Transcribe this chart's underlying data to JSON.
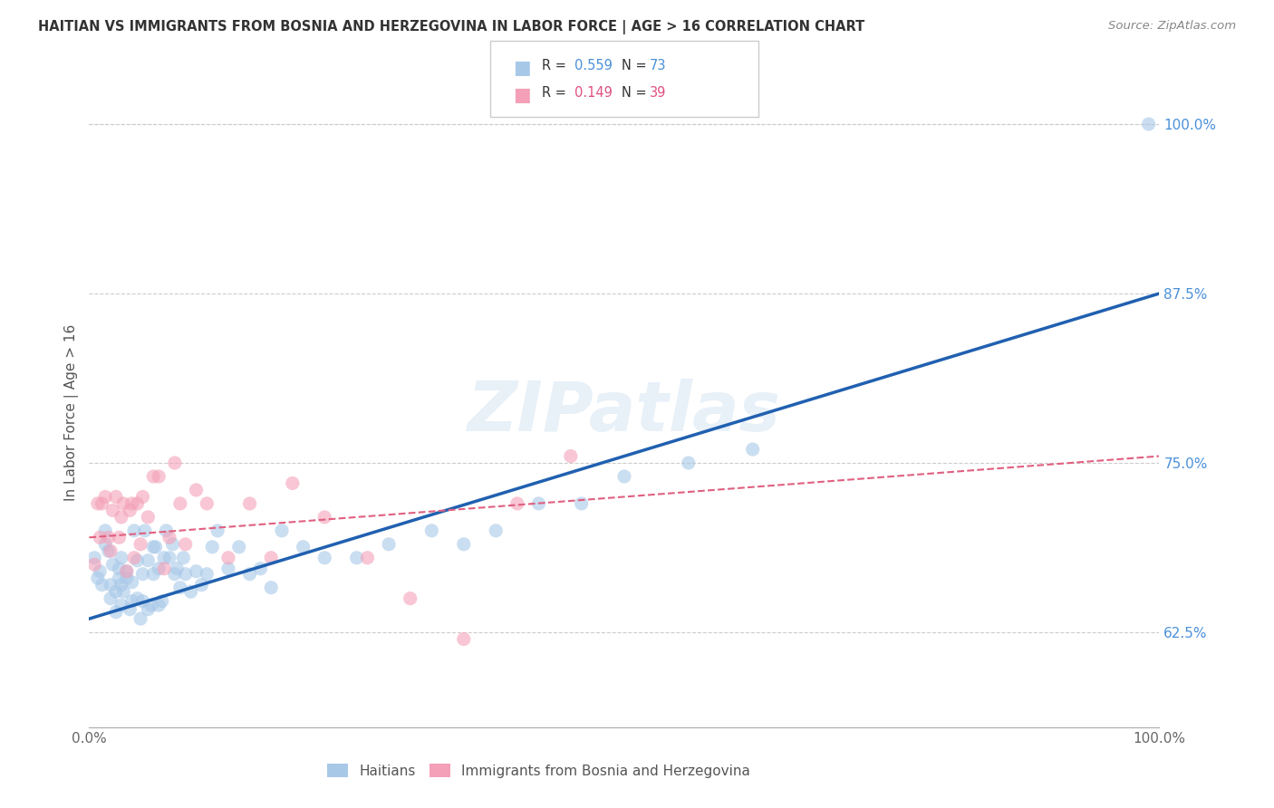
{
  "title": "HAITIAN VS IMMIGRANTS FROM BOSNIA AND HERZEGOVINA IN LABOR FORCE | AGE > 16 CORRELATION CHART",
  "source": "Source: ZipAtlas.com",
  "ylabel": "In Labor Force | Age > 16",
  "xlim": [
    0.0,
    1.0
  ],
  "ylim": [
    0.555,
    1.02
  ],
  "x_ticks": [
    0.0,
    0.1,
    0.2,
    0.3,
    0.4,
    0.5,
    0.6,
    0.7,
    0.8,
    0.9,
    1.0
  ],
  "x_tick_labels": [
    "0.0%",
    "",
    "",
    "",
    "",
    "",
    "",
    "",
    "",
    "",
    "100.0%"
  ],
  "y_ticks_right": [
    0.625,
    0.75,
    0.875,
    1.0
  ],
  "y_tick_labels_right": [
    "62.5%",
    "75.0%",
    "87.5%",
    "100.0%"
  ],
  "color_blue": "#a8c8e8",
  "color_pink": "#f4a0b8",
  "color_blue_text": "#4a90d9",
  "color_pink_text": "#e05080",
  "color_line_blue": "#2060b0",
  "color_line_pink": "#e06080",
  "label_haitians": "Haitians",
  "label_bosnia": "Immigrants from Bosnia and Herzegovina",
  "watermark": "ZIPatlas",
  "blue_scatter_x": [
    0.005,
    0.008,
    0.01,
    0.012,
    0.015,
    0.015,
    0.018,
    0.02,
    0.02,
    0.022,
    0.025,
    0.025,
    0.028,
    0.028,
    0.03,
    0.03,
    0.03,
    0.032,
    0.035,
    0.035,
    0.038,
    0.04,
    0.04,
    0.042,
    0.045,
    0.045,
    0.048,
    0.05,
    0.05,
    0.052,
    0.055,
    0.055,
    0.058,
    0.06,
    0.06,
    0.062,
    0.065,
    0.065,
    0.068,
    0.07,
    0.072,
    0.075,
    0.078,
    0.08,
    0.082,
    0.085,
    0.088,
    0.09,
    0.095,
    0.1,
    0.105,
    0.11,
    0.115,
    0.12,
    0.13,
    0.14,
    0.15,
    0.16,
    0.17,
    0.18,
    0.2,
    0.22,
    0.25,
    0.28,
    0.32,
    0.35,
    0.38,
    0.42,
    0.46,
    0.5,
    0.56,
    0.62,
    0.99
  ],
  "blue_scatter_y": [
    0.68,
    0.665,
    0.67,
    0.66,
    0.69,
    0.7,
    0.685,
    0.65,
    0.66,
    0.675,
    0.64,
    0.655,
    0.665,
    0.672,
    0.645,
    0.66,
    0.68,
    0.655,
    0.665,
    0.67,
    0.642,
    0.662,
    0.648,
    0.7,
    0.65,
    0.678,
    0.635,
    0.668,
    0.648,
    0.7,
    0.642,
    0.678,
    0.645,
    0.668,
    0.688,
    0.688,
    0.645,
    0.672,
    0.648,
    0.68,
    0.7,
    0.68,
    0.69,
    0.668,
    0.672,
    0.658,
    0.68,
    0.668,
    0.655,
    0.67,
    0.66,
    0.668,
    0.688,
    0.7,
    0.672,
    0.688,
    0.668,
    0.672,
    0.658,
    0.7,
    0.688,
    0.68,
    0.68,
    0.69,
    0.7,
    0.69,
    0.7,
    0.72,
    0.72,
    0.74,
    0.75,
    0.76,
    1.0
  ],
  "pink_scatter_x": [
    0.005,
    0.008,
    0.01,
    0.012,
    0.015,
    0.018,
    0.02,
    0.022,
    0.025,
    0.028,
    0.03,
    0.032,
    0.035,
    0.038,
    0.04,
    0.042,
    0.045,
    0.048,
    0.05,
    0.055,
    0.06,
    0.065,
    0.07,
    0.075,
    0.08,
    0.085,
    0.09,
    0.1,
    0.11,
    0.13,
    0.15,
    0.17,
    0.19,
    0.22,
    0.26,
    0.3,
    0.35,
    0.4,
    0.45
  ],
  "pink_scatter_y": [
    0.675,
    0.72,
    0.695,
    0.72,
    0.725,
    0.695,
    0.685,
    0.715,
    0.725,
    0.695,
    0.71,
    0.72,
    0.67,
    0.715,
    0.72,
    0.68,
    0.72,
    0.69,
    0.725,
    0.71,
    0.74,
    0.74,
    0.672,
    0.695,
    0.75,
    0.72,
    0.69,
    0.73,
    0.72,
    0.68,
    0.72,
    0.68,
    0.735,
    0.71,
    0.68,
    0.65,
    0.62,
    0.72,
    0.755
  ],
  "blue_line_x": [
    0.0,
    1.0
  ],
  "blue_line_y_start": 0.635,
  "blue_line_y_end": 0.875,
  "pink_line_x": [
    0.0,
    1.0
  ],
  "pink_line_y_start": 0.695,
  "pink_line_y_end": 0.755
}
